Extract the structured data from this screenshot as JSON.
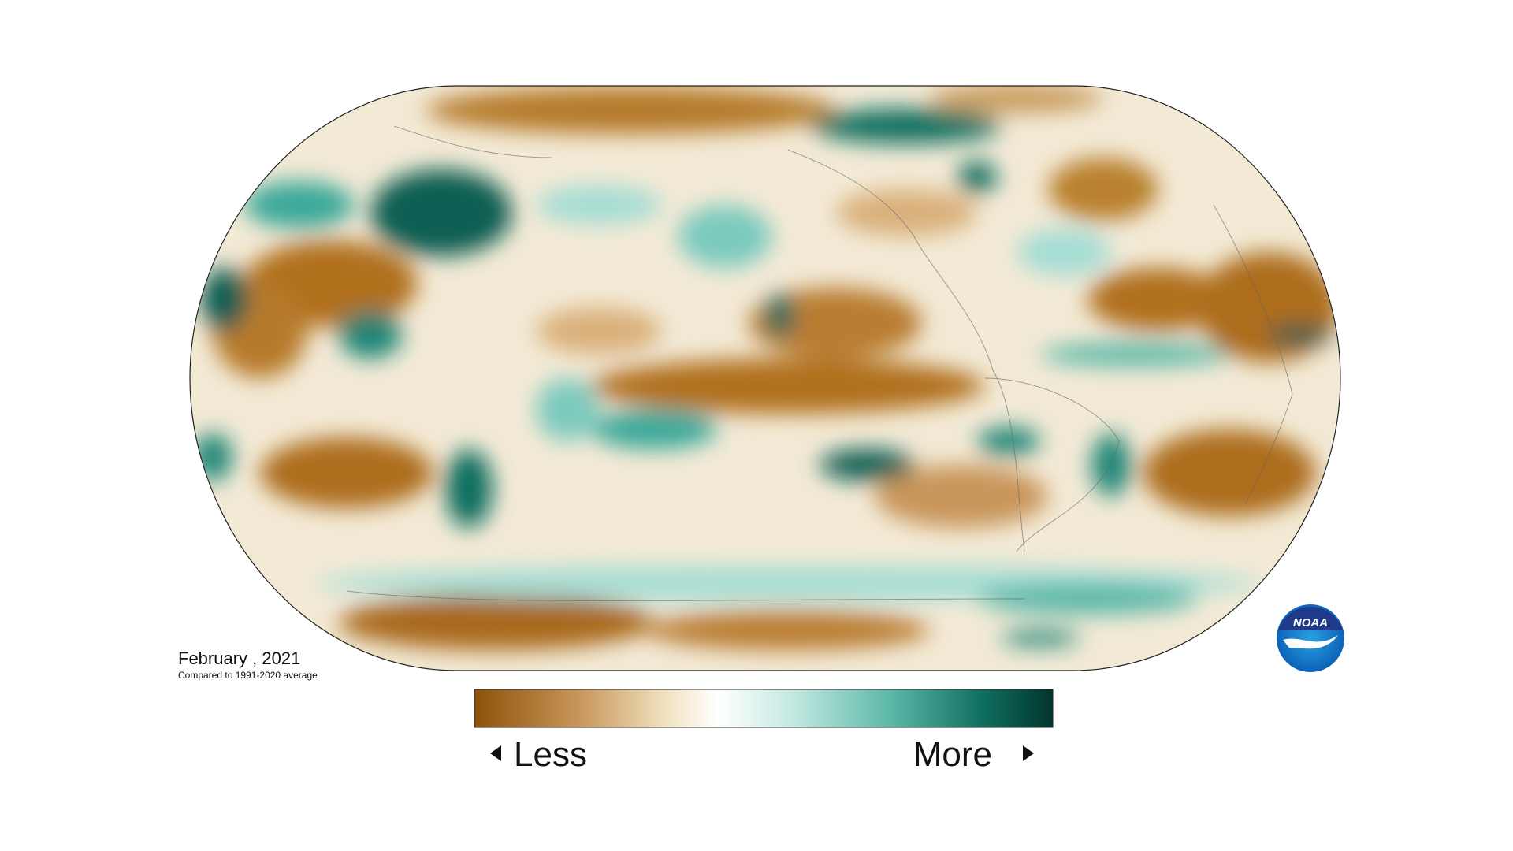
{
  "map": {
    "date": "February , 2021",
    "note": "Compared to 1991-2020 average"
  },
  "legend": {
    "less": "Less",
    "more": "More"
  },
  "logo": "NOAA"
}
